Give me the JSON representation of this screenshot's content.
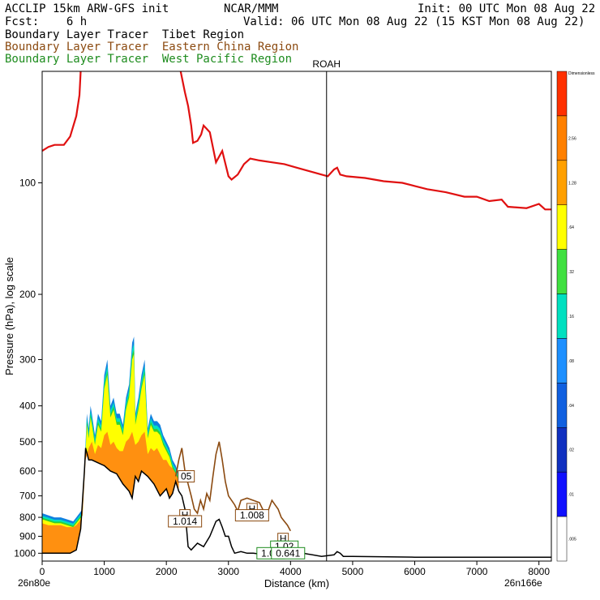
{
  "header": {
    "line1_left": "ACCLIP 15km ARW-GFS init",
    "line1_mid": "NCAR/MMM",
    "line1_right": "Init: 00 UTC Mon 08 Aug 22",
    "line2_left": "Fcst:    6 h",
    "line2_right": "Valid: 06 UTC Mon 08 Aug 22 (15 KST Mon 08 Aug 22)",
    "tracer1": "Boundary Layer Tracer  Tibet Region",
    "tracer2": "Boundary Layer Tracer  Eastern China Region",
    "tracer3": "Boundary Layer Tracer  West Pacific Region"
  },
  "colors": {
    "tibet": "#000000",
    "eastern_china": "#8b4a10",
    "west_pacific": "#1e8c1e",
    "tropopause": "#e01010",
    "terrain": "#000000",
    "tracer_orange": "#ff9010",
    "tracer_yellow": "#ffff00",
    "tracer_green": "#30d030",
    "tracer_cyan": "#00e0c0",
    "tracer_blue": "#1080e0"
  },
  "chart_data": {
    "type": "area",
    "xlabel": "Distance (km)",
    "ylabel": "Pressure (hPa), log scale",
    "xlim": [
      0,
      8200
    ],
    "ylim": [
      1050,
      50
    ],
    "y_log": true,
    "x_ticks": [
      0,
      1000,
      2000,
      3000,
      4000,
      5000,
      6000,
      7000,
      8000
    ],
    "y_ticks": [
      100,
      200,
      300,
      400,
      500,
      600,
      700,
      800,
      900,
      1000
    ],
    "left_end_label": "26n80e",
    "right_end_label": "26n166e",
    "marker": {
      "label": "ROAH",
      "x": 4580
    },
    "tropopause": {
      "x": [
        0,
        100,
        200,
        350,
        450,
        550,
        600,
        620
      ],
      "y": [
        82,
        80,
        79,
        79,
        75,
        66,
        58,
        50
      ]
    },
    "tropopause_right": {
      "x": [
        2230,
        2300,
        2350,
        2400,
        2430,
        2500,
        2560,
        2600,
        2700,
        2800,
        2900,
        3000,
        3050,
        3150,
        3250,
        3350,
        3500,
        3700,
        3900,
        4100,
        4300,
        4400,
        4500,
        4600,
        4700,
        4750,
        4800,
        4900,
        5200,
        5500,
        5800,
        6000,
        6200,
        6500,
        6800,
        7000,
        7200,
        7400,
        7500,
        7800,
        8000,
        8100,
        8200
      ],
      "y": [
        50,
        57,
        62,
        70,
        78,
        77,
        74,
        70,
        73,
        88,
        82,
        96,
        98,
        95,
        89,
        86,
        87,
        88,
        89,
        91,
        93,
        94,
        95,
        96,
        92,
        91,
        95,
        96,
        97,
        99,
        100,
        102,
        104,
        106,
        109,
        109,
        112,
        111,
        116,
        117,
        114,
        118,
        118
      ]
    },
    "terrain": {
      "x": [
        0,
        150,
        300,
        450,
        550,
        620,
        680,
        700,
        750,
        800,
        900,
        1000,
        1100,
        1200,
        1300,
        1400,
        1450,
        1500,
        1550,
        1600,
        1650,
        1700,
        1800,
        1900,
        2000,
        2050,
        2100,
        2150,
        2200,
        2250,
        2300,
        2350,
        2400,
        2500,
        2600,
        2700,
        2800,
        2850,
        2900,
        2950,
        3000,
        3050,
        3100,
        3200,
        3300,
        3400,
        3600,
        3800,
        4000,
        4200,
        4500,
        4700,
        4750,
        4800,
        4850,
        5000,
        6000,
        7000,
        8000,
        8200
      ],
      "y": [
        1000,
        1000,
        1000,
        1000,
        980,
        860,
        600,
        520,
        560,
        560,
        570,
        580,
        600,
        610,
        650,
        680,
        710,
        620,
        640,
        600,
        610,
        620,
        650,
        700,
        670,
        710,
        690,
        640,
        680,
        700,
        760,
        960,
        980,
        940,
        960,
        900,
        820,
        810,
        850,
        900,
        900,
        960,
        1000,
        990,
        1000,
        1000,
        1010,
        1010,
        1000,
        1000,
        1020,
        1010,
        990,
        1000,
        1020,
        1020,
        1025,
        1025,
        1025,
        1025
      ]
    },
    "tracer_top": {
      "x": [
        0,
        100,
        200,
        300,
        400,
        500,
        550,
        600,
        650,
        700,
        720,
        750,
        780,
        800,
        850,
        900,
        950,
        1000,
        1050,
        1100,
        1150,
        1200,
        1250,
        1300,
        1350,
        1400,
        1450,
        1480,
        1500,
        1550,
        1600,
        1650,
        1700,
        1750,
        1800,
        1850,
        1900,
        1950,
        2000,
        2050,
        2100,
        2150,
        2200
      ],
      "y": [
        780,
        790,
        800,
        800,
        810,
        820,
        800,
        780,
        760,
        500,
        420,
        460,
        400,
        420,
        480,
        420,
        440,
        330,
        300,
        400,
        380,
        420,
        420,
        450,
        380,
        350,
        270,
        260,
        420,
        380,
        330,
        300,
        460,
        420,
        440,
        440,
        450,
        480,
        500,
        520,
        560,
        580,
        610
      ]
    },
    "tracer_orange_top": {
      "x": [
        0,
        100,
        200,
        300,
        400,
        500,
        550,
        600,
        650,
        700,
        750,
        800,
        850,
        900,
        950,
        1000,
        1050,
        1100,
        1150,
        1200,
        1250,
        1300,
        1350,
        1400,
        1450,
        1500,
        1550,
        1600,
        1650,
        1700,
        1750,
        1800,
        1850,
        1900,
        1950,
        2000,
        2050,
        2100,
        2150,
        2200
      ],
      "y": [
        830,
        840,
        840,
        840,
        850,
        850,
        840,
        820,
        790,
        560,
        520,
        500,
        540,
        510,
        520,
        480,
        470,
        510,
        500,
        520,
        530,
        530,
        500,
        490,
        470,
        510,
        500,
        480,
        470,
        540,
        520,
        530,
        520,
        540,
        560,
        560,
        580,
        590,
        610,
        640
      ]
    },
    "eastern_china_contour": {
      "x": [
        2150,
        2200,
        2250,
        2300,
        2350,
        2400,
        2450,
        2500,
        2550,
        2600,
        2650,
        2700,
        2750,
        2800,
        2850,
        2900,
        2950,
        3000,
        3050,
        3100,
        3150,
        3200,
        3300,
        3400,
        3500,
        3550,
        3600,
        3650,
        3700,
        3750,
        3800,
        3850,
        3900,
        3950,
        4000
      ],
      "y": [
        620,
        560,
        520,
        600,
        650,
        700,
        760,
        780,
        720,
        760,
        690,
        720,
        620,
        540,
        500,
        560,
        640,
        700,
        720,
        740,
        770,
        720,
        710,
        720,
        730,
        760,
        800,
        760,
        720,
        740,
        760,
        800,
        820,
        840,
        870
      ]
    },
    "annotations": [
      {
        "label": "05",
        "x": 2320,
        "y": 620
      },
      {
        "label": "H",
        "x": 2300,
        "y": 790
      },
      {
        "label": "1.014",
        "x": 2300,
        "y": 820
      },
      {
        "label": "H",
        "x": 3380,
        "y": 760
      },
      {
        "label": "1.008",
        "x": 3380,
        "y": 790
      },
      {
        "label": "H",
        "x": 3880,
        "y": 915
      },
      {
        "label": "H",
        "x": 3820,
        "y": 960
      },
      {
        "label": "1.02",
        "x": 3900,
        "y": 960
      },
      {
        "label": "1.00",
        "x": 3680,
        "y": 1000
      },
      {
        "label": "0.641",
        "x": 3960,
        "y": 1000
      }
    ],
    "colorbar_labels": [
      "Dimensionless",
      "2.56",
      "1.28",
      ".64",
      ".32",
      ".16",
      ".08",
      ".04",
      ".02",
      ".01",
      ".005"
    ],
    "colorbar_colors": [
      "#ff3000",
      "#ff8000",
      "#ffa000",
      "#ffff00",
      "#40e040",
      "#00e0c0",
      "#1e90ff",
      "#1060e0",
      "#1030c0",
      "#1010ff",
      "#ffffff"
    ]
  }
}
